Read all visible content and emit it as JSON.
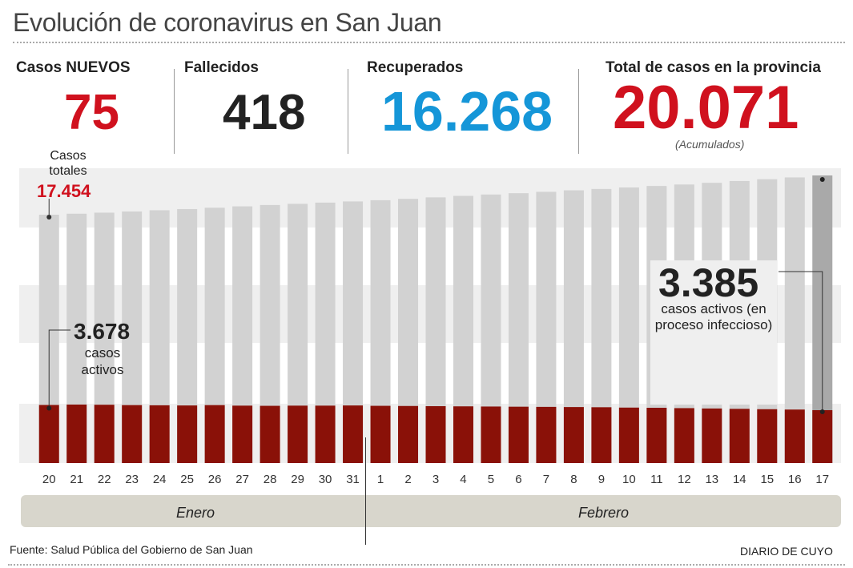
{
  "title": "Evolución de coronavirus en San Juan",
  "stats": {
    "nuevos": {
      "label": "Casos NUEVOS",
      "value": "75"
    },
    "fallecidos": {
      "label": "Fallecidos",
      "value": "418"
    },
    "recuperados": {
      "label": "Recuperados",
      "value": "16.268"
    },
    "total": {
      "label": "Total de casos en la provincia",
      "value": "20.071",
      "note": "(Acumulados)"
    }
  },
  "annotations": {
    "casos_totales_label": "Casos totales",
    "casos_totales_value": "17.454",
    "activos_start_value": "3.678",
    "activos_start_label": "casos activos",
    "activos_end_value": "3.385",
    "activos_end_label": "casos activos (en proceso infeccioso)"
  },
  "months": {
    "enero": "Enero",
    "febrero": "Febrero"
  },
  "source": "Fuente: Salud Pública del Gobierno de San Juan",
  "brand": "DIARIO DE CUYO",
  "colors": {
    "total_bar": "#d2d2d2",
    "total_bar_last": "#a9a9a9",
    "active_bar": "#8a1108",
    "red": "#d0111e",
    "blue": "#1596d8",
    "band": "#efefef"
  },
  "chart_data": {
    "type": "bar",
    "categories": [
      "20",
      "21",
      "22",
      "23",
      "24",
      "25",
      "26",
      "27",
      "28",
      "29",
      "30",
      "31",
      "1",
      "2",
      "3",
      "4",
      "5",
      "6",
      "7",
      "8",
      "9",
      "10",
      "11",
      "12",
      "13",
      "14",
      "15",
      "16",
      "17"
    ],
    "series": [
      {
        "name": "Casos totales",
        "values": [
          17454,
          17520,
          17590,
          17670,
          17750,
          17830,
          17920,
          18010,
          18100,
          18180,
          18260,
          18340,
          18420,
          18510,
          18610,
          18710,
          18800,
          18890,
          18980,
          19080,
          19170,
          19270,
          19370,
          19470,
          19580,
          19700,
          19820,
          19940,
          20071
        ]
      },
      {
        "name": "casos activos",
        "values": [
          3678,
          3700,
          3690,
          3670,
          3660,
          3650,
          3670,
          3640,
          3630,
          3640,
          3640,
          3650,
          3630,
          3620,
          3610,
          3600,
          3590,
          3580,
          3570,
          3560,
          3550,
          3530,
          3520,
          3500,
          3480,
          3460,
          3440,
          3420,
          3385
        ]
      }
    ]
  }
}
